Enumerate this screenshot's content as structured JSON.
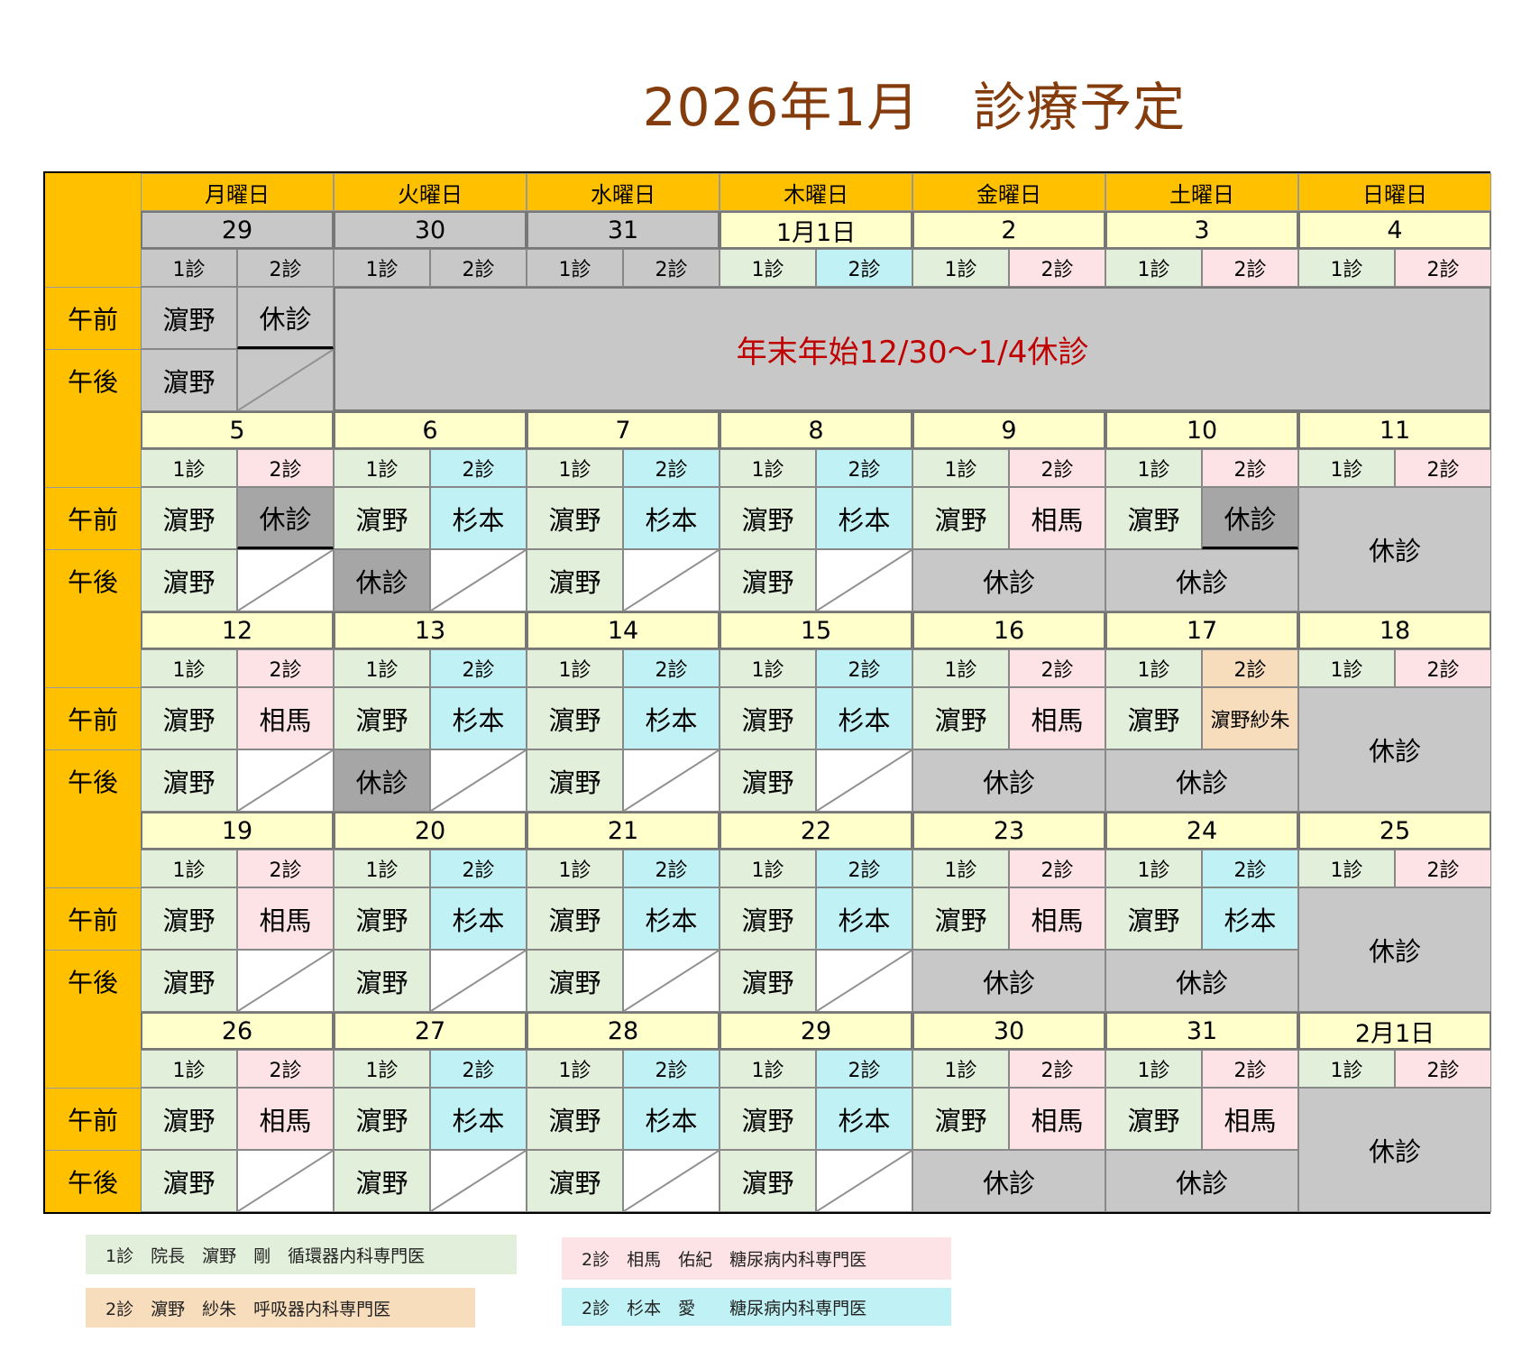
{
  "title": "2026年1月　診療予定",
  "weekday_headers": [
    "月曜日",
    "火曜日",
    "水曜日",
    "木曜日",
    "金曜日",
    "土曜日",
    "日曜日"
  ],
  "row_labels": {
    "am": "午前",
    "pm": "午後"
  },
  "clinic_labels": [
    "1診",
    "2診"
  ],
  "closed_text": "休診",
  "holiday_banner": "年末年始12/30～1/4休診",
  "colors": {
    "header": "#FFC000",
    "date": "#FFFFCC",
    "clinic1": "#E2EFDA",
    "soma": "#FDE2E6",
    "sugimoto": "#C0F2F5",
    "hamano_sayaka": "#F8DDBD",
    "closed": "#C8C8C8",
    "closed_dark": "#A6A6A6",
    "banner_text": "#C00000",
    "title": "#843C0C"
  },
  "weeks": [
    {
      "days": [
        {
          "date": "29",
          "kind": "weekday",
          "inactive": true,
          "c2": "gray",
          "am1": [
            "濵野",
            "gray"
          ],
          "am2": [
            "休診",
            "gray"
          ],
          "pm1": [
            "濵野",
            "gray"
          ],
          "pm2bg": "gray"
        },
        {
          "date": "30",
          "kind": "banner",
          "inactive": true,
          "c2": "gray"
        },
        {
          "date": "31",
          "kind": "banner",
          "inactive": true,
          "c2": "gray"
        },
        {
          "date": "1月1日",
          "kind": "banner",
          "c2": "cyan"
        },
        {
          "date": "2",
          "kind": "banner",
          "c2": "pink"
        },
        {
          "date": "3",
          "kind": "banner",
          "c2": "pink"
        },
        {
          "date": "4",
          "kind": "banner",
          "c2": "pink"
        }
      ]
    },
    {
      "days": [
        {
          "date": "5",
          "kind": "weekday",
          "c2": "pink",
          "am1": [
            "濵野",
            "green"
          ],
          "am2": [
            "休診",
            "dark"
          ],
          "pm1": [
            "濵野",
            "green"
          ]
        },
        {
          "date": "6",
          "kind": "weekday",
          "c2": "cyan",
          "am1": [
            "濵野",
            "green"
          ],
          "am2": [
            "杉本",
            "cyan"
          ],
          "pm1": [
            "休診",
            "dark"
          ]
        },
        {
          "date": "7",
          "kind": "weekday",
          "c2": "cyan",
          "am1": [
            "濵野",
            "green"
          ],
          "am2": [
            "杉本",
            "cyan"
          ],
          "pm1": [
            "濵野",
            "green"
          ]
        },
        {
          "date": "8",
          "kind": "weekday",
          "c2": "cyan",
          "am1": [
            "濵野",
            "green"
          ],
          "am2": [
            "杉本",
            "cyan"
          ],
          "pm1": [
            "濵野",
            "green"
          ]
        },
        {
          "date": "9",
          "kind": "half",
          "c2": "pink",
          "am1": [
            "濵野",
            "green"
          ],
          "am2": [
            "相馬",
            "pink"
          ]
        },
        {
          "date": "10",
          "kind": "half",
          "c2": "pink",
          "am1": [
            "濵野",
            "green"
          ],
          "am2": [
            "休診",
            "dark"
          ]
        },
        {
          "date": "11",
          "kind": "closed",
          "c2": "pink"
        }
      ]
    },
    {
      "days": [
        {
          "date": "12",
          "kind": "weekday",
          "c2": "pink",
          "am1": [
            "濵野",
            "green"
          ],
          "am2": [
            "相馬",
            "pink"
          ],
          "pm1": [
            "濵野",
            "green"
          ]
        },
        {
          "date": "13",
          "kind": "weekday",
          "c2": "cyan",
          "am1": [
            "濵野",
            "green"
          ],
          "am2": [
            "杉本",
            "cyan"
          ],
          "pm1": [
            "休診",
            "dark"
          ]
        },
        {
          "date": "14",
          "kind": "weekday",
          "c2": "cyan",
          "am1": [
            "濵野",
            "green"
          ],
          "am2": [
            "杉本",
            "cyan"
          ],
          "pm1": [
            "濵野",
            "green"
          ]
        },
        {
          "date": "15",
          "kind": "weekday",
          "c2": "cyan",
          "am1": [
            "濵野",
            "green"
          ],
          "am2": [
            "杉本",
            "cyan"
          ],
          "pm1": [
            "濵野",
            "green"
          ]
        },
        {
          "date": "16",
          "kind": "half",
          "c2": "pink",
          "am1": [
            "濵野",
            "green"
          ],
          "am2": [
            "相馬",
            "pink"
          ]
        },
        {
          "date": "17",
          "kind": "half",
          "c2": "tan",
          "am1": [
            "濵野",
            "green"
          ],
          "am2": [
            "濵野紗朱",
            "tan"
          ]
        },
        {
          "date": "18",
          "kind": "closed",
          "c2": "pink"
        }
      ]
    },
    {
      "days": [
        {
          "date": "19",
          "kind": "weekday",
          "c2": "pink",
          "am1": [
            "濵野",
            "green"
          ],
          "am2": [
            "相馬",
            "pink"
          ],
          "pm1": [
            "濵野",
            "green"
          ]
        },
        {
          "date": "20",
          "kind": "weekday",
          "c2": "cyan",
          "am1": [
            "濵野",
            "green"
          ],
          "am2": [
            "杉本",
            "cyan"
          ],
          "pm1": [
            "濵野",
            "green"
          ]
        },
        {
          "date": "21",
          "kind": "weekday",
          "c2": "cyan",
          "am1": [
            "濵野",
            "green"
          ],
          "am2": [
            "杉本",
            "cyan"
          ],
          "pm1": [
            "濵野",
            "green"
          ]
        },
        {
          "date": "22",
          "kind": "weekday",
          "c2": "cyan",
          "am1": [
            "濵野",
            "green"
          ],
          "am2": [
            "杉本",
            "cyan"
          ],
          "pm1": [
            "濵野",
            "green"
          ]
        },
        {
          "date": "23",
          "kind": "half",
          "c2": "pink",
          "am1": [
            "濵野",
            "green"
          ],
          "am2": [
            "相馬",
            "pink"
          ]
        },
        {
          "date": "24",
          "kind": "half",
          "c2": "cyan",
          "am1": [
            "濵野",
            "green"
          ],
          "am2": [
            "杉本",
            "cyan"
          ]
        },
        {
          "date": "25",
          "kind": "closed",
          "c2": "pink"
        }
      ]
    },
    {
      "days": [
        {
          "date": "26",
          "kind": "weekday",
          "c2": "pink",
          "am1": [
            "濵野",
            "green"
          ],
          "am2": [
            "相馬",
            "pink"
          ],
          "pm1": [
            "濵野",
            "green"
          ]
        },
        {
          "date": "27",
          "kind": "weekday",
          "c2": "cyan",
          "am1": [
            "濵野",
            "green"
          ],
          "am2": [
            "杉本",
            "cyan"
          ],
          "pm1": [
            "濵野",
            "green"
          ]
        },
        {
          "date": "28",
          "kind": "weekday",
          "c2": "cyan",
          "am1": [
            "濵野",
            "green"
          ],
          "am2": [
            "杉本",
            "cyan"
          ],
          "pm1": [
            "濵野",
            "green"
          ]
        },
        {
          "date": "29",
          "kind": "weekday",
          "c2": "cyan",
          "am1": [
            "濵野",
            "green"
          ],
          "am2": [
            "杉本",
            "cyan"
          ],
          "pm1": [
            "濵野",
            "green"
          ]
        },
        {
          "date": "30",
          "kind": "half",
          "c2": "pink",
          "am1": [
            "濵野",
            "green"
          ],
          "am2": [
            "相馬",
            "pink"
          ]
        },
        {
          "date": "31",
          "kind": "half",
          "c2": "pink",
          "am1": [
            "濵野",
            "green"
          ],
          "am2": [
            "相馬",
            "pink"
          ]
        },
        {
          "date": "2月1日",
          "kind": "closed",
          "c2": "pink"
        }
      ]
    }
  ],
  "legend": [
    {
      "text": "1診　院長　濵野　剛　循環器内科専門医",
      "color": "green"
    },
    {
      "text": "2診　濵野　紗朱　呼吸器内科専門医",
      "color": "tan"
    },
    {
      "text": "2診　相馬　佑紀　糖尿病内科専門医",
      "color": "pink"
    },
    {
      "text": "2診　杉本　愛　　糖尿病内科専門医",
      "color": "cyan"
    }
  ]
}
